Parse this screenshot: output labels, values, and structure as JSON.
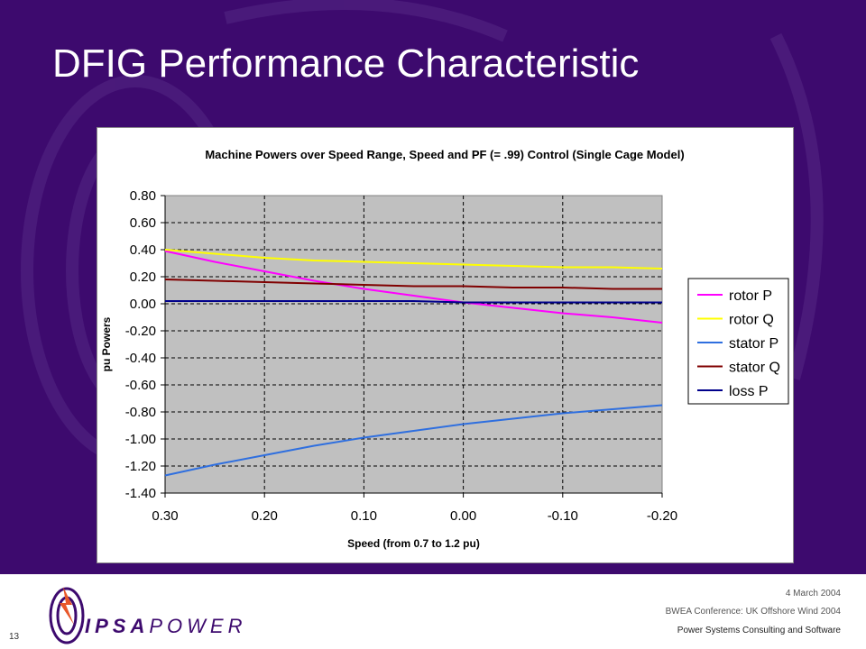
{
  "slide": {
    "title": "DFIG Performance Characteristic",
    "page_number": "13",
    "date": "4 March 2004",
    "conference": "BWEA Conference: UK Offshore Wind 2004",
    "tagline": "Power Systems Consulting and Software",
    "logo_text_bold": "IPSA",
    "logo_text_light": "POWER"
  },
  "colors": {
    "background": "#3d0a6e",
    "plot_area": "#c0c0c0",
    "rotor_p": "#ff00ff",
    "rotor_q": "#ffff00",
    "stator_p": "#2f6fdf",
    "stator_q": "#800000",
    "loss_p": "#00008b"
  },
  "chart_data": {
    "type": "line",
    "title": "Machine Powers over Speed Range, Speed and PF (= .99) Control (Single Cage Model)",
    "xlabel": "Speed (from 0.7 to 1.2 pu)",
    "ylabel": "pu Powers",
    "x": [
      0.3,
      0.25,
      0.2,
      0.15,
      0.1,
      0.05,
      0.0,
      -0.05,
      -0.1,
      -0.15,
      -0.2
    ],
    "xlim": [
      0.3,
      -0.2
    ],
    "x_ticks": [
      "0.30",
      "0.20",
      "0.10",
      "0.00",
      "-0.10",
      "-0.20"
    ],
    "ylim": [
      -1.4,
      0.8
    ],
    "y_ticks": [
      "0.80",
      "0.60",
      "0.40",
      "0.20",
      "0.00",
      "-0.20",
      "-0.40",
      "-0.60",
      "-0.80",
      "-1.00",
      "-1.20",
      "-1.40"
    ],
    "grid": "dashed",
    "legend_position": "right",
    "series": [
      {
        "name": "rotor P",
        "color": "#ff00ff",
        "values": [
          0.39,
          0.31,
          0.24,
          0.17,
          0.11,
          0.06,
          0.01,
          -0.03,
          -0.07,
          -0.1,
          -0.14
        ]
      },
      {
        "name": "rotor Q",
        "color": "#ffff00",
        "values": [
          0.4,
          0.37,
          0.34,
          0.32,
          0.31,
          0.3,
          0.29,
          0.28,
          0.27,
          0.27,
          0.26
        ]
      },
      {
        "name": "stator P",
        "color": "#2f6fdf",
        "values": [
          -1.27,
          -1.19,
          -1.12,
          -1.05,
          -0.99,
          -0.94,
          -0.89,
          -0.85,
          -0.81,
          -0.78,
          -0.75
        ]
      },
      {
        "name": "stator Q",
        "color": "#800000",
        "values": [
          0.18,
          0.17,
          0.16,
          0.15,
          0.14,
          0.13,
          0.13,
          0.12,
          0.12,
          0.11,
          0.11
        ]
      },
      {
        "name": "loss P",
        "color": "#00008b",
        "values": [
          0.02,
          0.02,
          0.02,
          0.02,
          0.02,
          0.02,
          0.01,
          0.01,
          0.01,
          0.01,
          0.01
        ]
      }
    ]
  }
}
